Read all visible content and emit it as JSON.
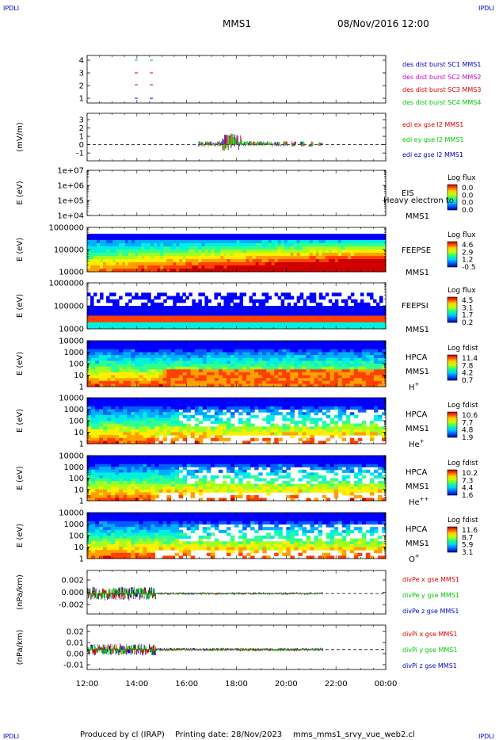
{
  "corner_labels": {
    "tl": "IPDLI",
    "tr": "IPDLI",
    "bl": "IPDLI",
    "br": "IPDLI"
  },
  "header": {
    "title": "MMS1",
    "date": "08/Nov/2016 12:00"
  },
  "footer": {
    "produced": "Produced by cl (IRAP)",
    "printing": "Printing date: 28/Nov/2023",
    "script": "mms_mms1_srvy_vue_web2.cl"
  },
  "colors": {
    "red": "#e00000",
    "green": "#00c800",
    "blue": "#0000c8",
    "magenta": "#c800c8"
  },
  "chart_data": {
    "type": "heatmap",
    "x_ticks": [
      "12:00",
      "14:00",
      "16:00",
      "18:00",
      "20:00",
      "22:00",
      "00:00"
    ],
    "x_range_hours": [
      12,
      24
    ],
    "panels": [
      {
        "id": "p1",
        "type": "line",
        "yticks": [
          "4",
          "3",
          "2",
          "1"
        ],
        "ylabel": "",
        "legend": [
          {
            "text": "des dist burst SC1 MMS1",
            "color": "#0000c8"
          },
          {
            "text": "des dist burst SC2 MMS2",
            "color": "#c800c8"
          },
          {
            "text": "des dist burst SC3 MMS3",
            "color": "#e00000"
          },
          {
            "text": "des dist burst SC4 MMS4",
            "color": "#00c800"
          }
        ]
      },
      {
        "id": "p2",
        "type": "line",
        "yticks": [
          "3",
          "2",
          "1",
          "0",
          "-1"
        ],
        "ylabel": "(mV/m)",
        "legend": [
          {
            "text": "edi ex gse l2 MMS1",
            "color": "#e00000"
          },
          {
            "text": "edi ey gse l2 MMS1",
            "color": "#00c800"
          },
          {
            "text": "edi ez gse l2 MMS1",
            "color": "#0000c8"
          }
        ]
      },
      {
        "id": "p3",
        "type": "heatmap",
        "yticks": [
          "1e+07",
          "1e+06",
          "1e+05",
          "1e+04"
        ],
        "ylabel": "E (eV)",
        "side": [
          "EIS",
          "MMS1"
        ],
        "overlay": "Heavy electron to",
        "cb_title": "Log flux",
        "cb_ticks": [
          "0.0",
          "0.0",
          "0.0",
          "0.0"
        ]
      },
      {
        "id": "p4",
        "type": "heatmap",
        "yticks": [
          "1000000",
          "100000",
          "10000"
        ],
        "ylabel": "E (eV)",
        "side": [
          "FEEPSE",
          "MMS1"
        ],
        "cb_title": "Log flux",
        "cb_ticks": [
          "4.6",
          "2.9",
          "1.2",
          "-0.5"
        ]
      },
      {
        "id": "p5",
        "type": "heatmap",
        "yticks": [
          "1000000",
          "100000",
          "10000"
        ],
        "ylabel": "E (eV)",
        "side": [
          "FEEPSI",
          "MMS1"
        ],
        "cb_title": "Log flux",
        "cb_ticks": [
          "4.5",
          "3.1",
          "1.7",
          "0.2"
        ]
      },
      {
        "id": "p6",
        "type": "heatmap",
        "yticks": [
          "10000",
          "1000",
          "100",
          "10",
          "1"
        ],
        "ylabel": "E (eV)",
        "side": [
          "HPCA",
          "MMS1"
        ],
        "species": "H",
        "sup": "+",
        "cb_title": "Log fdist",
        "cb_ticks": [
          "11.4",
          "7.8",
          "4.2",
          "0.7"
        ]
      },
      {
        "id": "p7",
        "type": "heatmap",
        "yticks": [
          "10000",
          "1000",
          "100",
          "10",
          "1"
        ],
        "ylabel": "E (eV)",
        "side": [
          "HPCA",
          "MMS1"
        ],
        "species": "He",
        "sup": "+",
        "cb_title": "Log fdist",
        "cb_ticks": [
          "10.6",
          "7.7",
          "4.8",
          "1.9"
        ]
      },
      {
        "id": "p8",
        "type": "heatmap",
        "yticks": [
          "10000",
          "1000",
          "100",
          "10",
          "1"
        ],
        "ylabel": "E (eV)",
        "side": [
          "HPCA",
          "MMS1"
        ],
        "species": "He",
        "sup": "++",
        "cb_title": "Log fdist",
        "cb_ticks": [
          "10.2",
          "7.3",
          "4.4",
          "1.6"
        ]
      },
      {
        "id": "p9",
        "type": "heatmap",
        "yticks": [
          "10000",
          "1000",
          "100",
          "10",
          "1"
        ],
        "ylabel": "E (eV)",
        "side": [
          "HPCA",
          "MMS1"
        ],
        "species": "O",
        "sup": "+",
        "cb_title": "Log fdist",
        "cb_ticks": [
          "11.6",
          "8.7",
          "5.9",
          "3.1"
        ]
      },
      {
        "id": "p10",
        "type": "line",
        "yticks": [
          "0.002",
          "0.000",
          "-0.002"
        ],
        "ylabel": "(nPa/km)",
        "legend": [
          {
            "text": "divPe x gse MMS1",
            "color": "#e00000"
          },
          {
            "text": "divPe y gse MMS1",
            "color": "#00c800"
          },
          {
            "text": "divPe z gse MMS1",
            "color": "#0000c8"
          }
        ]
      },
      {
        "id": "p11",
        "type": "line",
        "yticks": [
          "0.02",
          "0.01",
          "0.00",
          "-0.01"
        ],
        "ylabel": "(nPa/km)",
        "legend": [
          {
            "text": "divPi x gse MMS1",
            "color": "#e00000"
          },
          {
            "text": "divPi y gse MMS1",
            "color": "#00c800"
          },
          {
            "text": "divPi z gse MMS1",
            "color": "#0000c8"
          }
        ]
      }
    ]
  }
}
